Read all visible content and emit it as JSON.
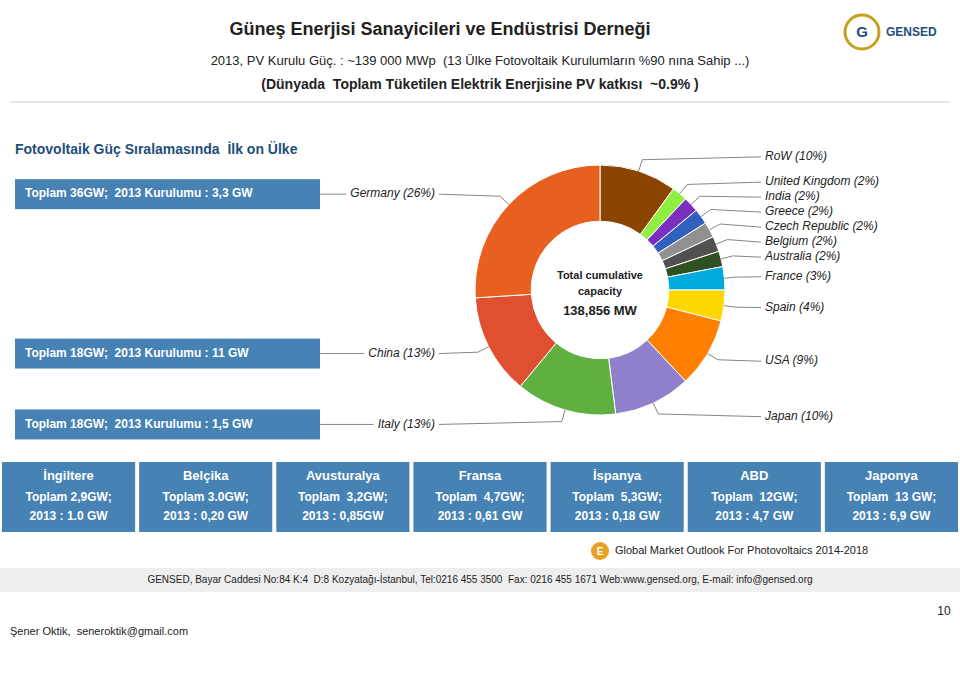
{
  "chart_data": {
    "type": "pie",
    "title": "Güneş Enerjisi Sanayicileri ve Endüstrisi Derneği",
    "subtitle": "2013, PV Kurulu Güç. : ~139 000 MWp  (13 Ülke Fotovoltaik Kurulumların %90 nına Sahip ...)",
    "categories": [
      "RoW (10%)",
      "United Kingdom (2%)",
      "India (2%)",
      "Greece (2%)",
      "Czech Republic (2%)",
      "Belgium (2%)",
      "Australia (2%)",
      "France (3%)",
      "Spain (4%)",
      "USA (9%)",
      "Japan (10%)",
      "Italy (13%)",
      "China (13%)",
      "Germany (26%)"
    ],
    "values": [
      10,
      2,
      2,
      2,
      2,
      2,
      2,
      3,
      4,
      9,
      10,
      13,
      13,
      26
    ],
    "colors": [
      "#8B4500",
      "#90EE40",
      "#7B2FBE",
      "#3060C0",
      "#909090",
      "#505050",
      "#2F5020",
      "#00AADD",
      "#FFD700",
      "#FF8000",
      "#9080CC",
      "#60B040",
      "#E05030",
      "#E86020"
    ],
    "annotations": [
      "(Dünyada  Toplam Tüketilen Elektrik Enerjisine PV katkısı  ~0.9% )",
      "Total cumulative",
      "capacity",
      "138,856 MW",
      "Fotovoltaik Güç Sıralamasında  İlk on Ülke",
      "Toplam 36GW;  2013 Kurulumu : 3,3 GW",
      "Toplam 18GW;  2013 Kurulumu : 11 GW",
      "Toplam 18GW;  2013 Kurulumu : 1,5 GW",
      "İngiltere",
      "Toplam 2,9GW;",
      "2013 : 1.0 GW",
      "Belçika",
      "Toplam 3.0GW;",
      "2013 : 0,20 GW",
      "Avusturalya",
      "Toplam  3,2GW;",
      "2013 : 0,85GW",
      "Fransa",
      "Toplam  4,7GW;",
      "2013 : 0,61 GW",
      "İspanya",
      "Toplam  5,3GW;",
      "2013 : 0,18 GW",
      "ABD",
      "Toplam  12GW;",
      "2013 : 4,7 GW",
      "Japonya",
      "Toplam  13 GW;",
      "2013 : 6,9 GW",
      "Global Market Outlook For Photovoltaics 2014-2018",
      "GENSED, Bayar Caddesi No:84 K:4  D:8 Kozyatağı-İstanbul, Tel:0216 455 3500  Fax: 0216 455 1671 Web:www.gensed.org, E-mail: info@gensed.org",
      "10",
      "Şener Oktik,  seneroktik@gmail.com",
      "GENSED",
      "G",
      "E"
    ]
  }
}
